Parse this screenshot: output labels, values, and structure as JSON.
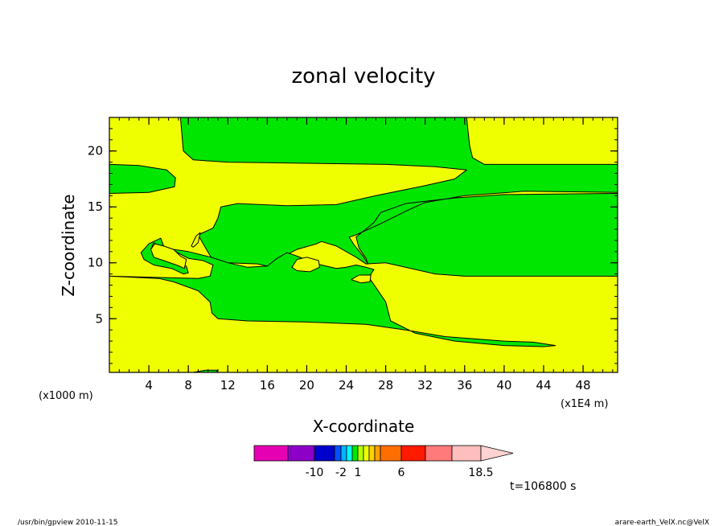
{
  "chart_data": {
    "type": "heatmap",
    "title": "zonal velocity",
    "xlabel": "X-coordinate",
    "ylabel": "Z-coordinate",
    "x_unit_left": "(x1000 m)",
    "x_unit_right": "(x1E4 m)",
    "xlim": [
      0,
      51.5
    ],
    "ylim": [
      0.2,
      23
    ],
    "xticks": [
      4,
      8,
      12,
      16,
      20,
      24,
      28,
      32,
      36,
      40,
      44,
      48
    ],
    "yticks": [
      5,
      10,
      15,
      20
    ],
    "fill_colors": {
      "background": "#f0ff00",
      "regions": "#00e600"
    },
    "regions": [
      [
        [
          0,
          23
        ],
        [
          7.2,
          23
        ],
        [
          7.5,
          20
        ],
        [
          8.5,
          19.2
        ],
        [
          12,
          19
        ],
        [
          20,
          18.9
        ],
        [
          28,
          18.8
        ],
        [
          33,
          18.6
        ],
        [
          36.2,
          18.3
        ],
        [
          35,
          17.5
        ],
        [
          32,
          16.9
        ],
        [
          27,
          16
        ],
        [
          23,
          15.2
        ],
        [
          18,
          15.1
        ],
        [
          13,
          15.3
        ],
        [
          11.3,
          15
        ],
        [
          11,
          14
        ],
        [
          10.5,
          13.1
        ],
        [
          9,
          12.5
        ],
        [
          9.7,
          11.4
        ],
        [
          10.3,
          10.5
        ],
        [
          12,
          10
        ],
        [
          15,
          9.9
        ],
        [
          16,
          9.7
        ],
        [
          17.5,
          10.5
        ],
        [
          19,
          11.2
        ],
        [
          21,
          11.7
        ],
        [
          21.5,
          11.9
        ],
        [
          23,
          11.5
        ],
        [
          25,
          10.5
        ],
        [
          26,
          9.9
        ],
        [
          28,
          10
        ],
        [
          30,
          9.6
        ],
        [
          33,
          9
        ],
        [
          36,
          8.8
        ],
        [
          51.5,
          8.8
        ],
        [
          51.5,
          16.2
        ],
        [
          40,
          16.1
        ],
        [
          35,
          15.8
        ],
        [
          30,
          15.3
        ],
        [
          27.5,
          14.5
        ],
        [
          26.8,
          13.6
        ],
        [
          25,
          12.3
        ],
        [
          25.3,
          11.3
        ],
        [
          26,
          10.4
        ],
        [
          26.2,
          9.9
        ],
        [
          25.7,
          10.6
        ],
        [
          24.8,
          11.6
        ],
        [
          24.3,
          12.3
        ],
        [
          25,
          12.5
        ],
        [
          27.5,
          13.5
        ],
        [
          30,
          14.6
        ],
        [
          31,
          15
        ],
        [
          32,
          15.4
        ],
        [
          36,
          16
        ],
        [
          42,
          16.4
        ],
        [
          51.5,
          16.3
        ],
        [
          51.5,
          18.8
        ],
        [
          38,
          18.8
        ],
        [
          36.8,
          19.4
        ],
        [
          36.5,
          20.5
        ],
        [
          36.2,
          23
        ],
        [
          0,
          23
        ]
      ],
      [
        [
          0,
          8.8
        ],
        [
          5,
          8.6
        ],
        [
          6.5,
          8.3
        ],
        [
          9,
          7.5
        ],
        [
          10.2,
          6.5
        ],
        [
          10.4,
          5.5
        ],
        [
          11,
          5
        ],
        [
          14,
          4.8
        ],
        [
          20,
          4.7
        ],
        [
          26,
          4.5
        ],
        [
          30,
          4
        ],
        [
          34,
          3.4
        ],
        [
          40,
          3
        ],
        [
          43,
          2.9
        ],
        [
          45.2,
          2.6
        ],
        [
          44,
          2.5
        ],
        [
          40,
          2.6
        ],
        [
          35,
          3
        ],
        [
          31,
          3.7
        ],
        [
          28.5,
          4.8
        ],
        [
          28,
          6.5
        ],
        [
          27,
          7.8
        ],
        [
          26.3,
          8.7
        ],
        [
          26.8,
          9.4
        ],
        [
          26,
          9.6
        ],
        [
          25,
          9.8
        ],
        [
          24,
          9.6
        ],
        [
          23,
          9.5
        ],
        [
          21,
          9.9
        ],
        [
          19,
          10.6
        ],
        [
          18,
          10.9
        ],
        [
          17,
          10.4
        ],
        [
          16,
          9.7
        ],
        [
          14,
          9.6
        ],
        [
          12,
          10
        ],
        [
          10.3,
          10.5
        ],
        [
          8,
          11
        ],
        [
          6.5,
          11.2
        ],
        [
          5,
          11.5
        ],
        [
          4.5,
          11.8
        ],
        [
          4.2,
          11.2
        ],
        [
          5.5,
          10.3
        ],
        [
          7,
          10
        ],
        [
          7.8,
          9.7
        ],
        [
          8,
          9.1
        ],
        [
          7.5,
          9
        ],
        [
          6.3,
          9.5
        ],
        [
          4.5,
          9.8
        ],
        [
          3.5,
          10.3
        ],
        [
          3.2,
          10.9
        ],
        [
          4,
          11.7
        ],
        [
          5.2,
          12.2
        ],
        [
          5.5,
          11.5
        ],
        [
          6.5,
          11.1
        ],
        [
          8,
          10.4
        ],
        [
          9.5,
          10.2
        ],
        [
          10.5,
          9.8
        ],
        [
          10.2,
          8.8
        ],
        [
          9,
          8.6
        ],
        [
          0,
          8.8
        ]
      ],
      [
        [
          0,
          16.2
        ],
        [
          4,
          16.3
        ],
        [
          6.6,
          16.8
        ],
        [
          6.7,
          17.6
        ],
        [
          5.8,
          18.3
        ],
        [
          3,
          18.7
        ],
        [
          0,
          18.8
        ],
        [
          0,
          16.2
        ]
      ],
      [
        [
          8.5,
          0.2
        ],
        [
          9.8,
          0.4
        ],
        [
          11,
          0.4
        ],
        [
          10.8,
          0.2
        ],
        [
          8.5,
          0.2
        ]
      ]
    ],
    "yellow_islands": [
      [
        [
          4.2,
          11.2
        ],
        [
          4.6,
          11.7
        ],
        [
          5.5,
          11.5
        ],
        [
          6.5,
          11.2
        ],
        [
          7.2,
          10.6
        ],
        [
          7.8,
          10.3
        ],
        [
          7.6,
          9.5
        ],
        [
          6.8,
          9.8
        ],
        [
          5.5,
          10.2
        ],
        [
          4.5,
          10.5
        ],
        [
          4.2,
          11.2
        ]
      ],
      [
        [
          8.3,
          11.5
        ],
        [
          8.8,
          12.4
        ],
        [
          9.2,
          12.7
        ],
        [
          9.0,
          11.8
        ],
        [
          8.5,
          11.4
        ],
        [
          8.3,
          11.5
        ]
      ],
      [
        [
          18.5,
          9.6
        ],
        [
          19,
          10.3
        ],
        [
          20,
          10.5
        ],
        [
          21.2,
          10.2
        ],
        [
          21.3,
          9.6
        ],
        [
          20.3,
          9.2
        ],
        [
          19,
          9.3
        ],
        [
          18.5,
          9.6
        ]
      ],
      [
        [
          24.5,
          8.5
        ],
        [
          25.3,
          8.9
        ],
        [
          26.5,
          8.9
        ],
        [
          26.4,
          8.3
        ],
        [
          25.5,
          8.2
        ],
        [
          24.5,
          8.5
        ]
      ]
    ],
    "colorbar": {
      "colors": [
        "#e600b3",
        "#8c00c8",
        "#0000cc",
        "#0050ff",
        "#00b4ff",
        "#00ffff",
        "#00e600",
        "#b4ff00",
        "#f0ff00",
        "#ffd200",
        "#ffa000",
        "#ff6e00",
        "#ff1a00",
        "#ff7a7a",
        "#ffbebe"
      ],
      "tick_labels": [
        "-10",
        "-2",
        "1",
        "6",
        "18.5"
      ],
      "tick_values": [
        -10,
        -2,
        1,
        6,
        18.5
      ]
    },
    "annotation_time": "t=106800 s"
  },
  "footer": {
    "left": "/usr/bin/gpview   2010-11-15",
    "right": "arare-earth_VelX.nc@VelX"
  }
}
